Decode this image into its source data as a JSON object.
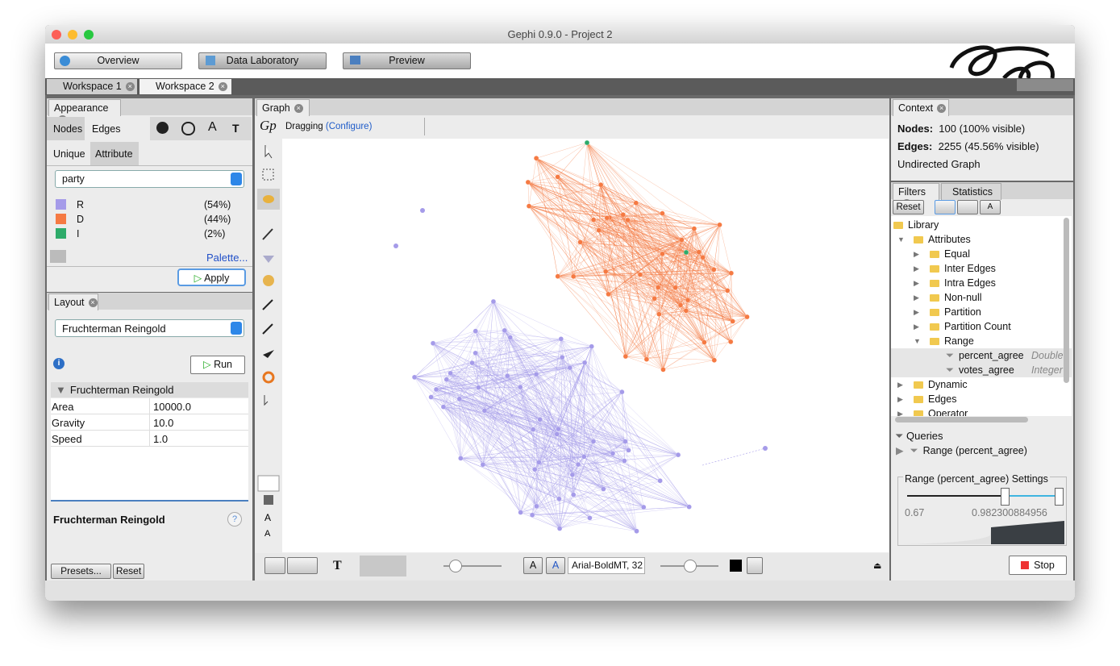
{
  "window": {
    "title": "Gephi 0.9.0 - Project 2"
  },
  "toolbar": {
    "tabs": [
      "Overview",
      "Data Laboratory",
      "Preview"
    ]
  },
  "workspaces": [
    "Workspace 1",
    "Workspace 2"
  ],
  "appearance": {
    "title": "Appearance",
    "tabs": [
      "Nodes",
      "Edges"
    ],
    "modes": [
      "Unique",
      "Attribute"
    ],
    "attribute": "party",
    "partitions": [
      {
        "label": "R",
        "share": "(54%)",
        "color": "#a59be9"
      },
      {
        "label": "D",
        "share": "(44%)",
        "color": "#f57a43"
      },
      {
        "label": "I",
        "share": "(2%)",
        "color": "#2eab6a"
      }
    ],
    "palette": "Palette...",
    "apply": "Apply"
  },
  "layout": {
    "title": "Layout",
    "algorithm": "Fruchterman Reingold",
    "run": "Run",
    "section": "Fruchterman Reingold",
    "properties": [
      {
        "name": "Area",
        "value": "10000.0"
      },
      {
        "name": "Gravity",
        "value": "10.0"
      },
      {
        "name": "Speed",
        "value": "1.0"
      }
    ],
    "description": "Fruchterman Reingold",
    "presets": "Presets...",
    "reset": "Reset"
  },
  "graph": {
    "title": "Graph",
    "mode": "Dragging",
    "configure": "(Configure)",
    "font": "Arial-BoldMT, 32"
  },
  "context": {
    "title": "Context",
    "nodes_label": "Nodes:",
    "nodes": "100 (100% visible)",
    "edges_label": "Edges:",
    "edges": "2255 (45.56% visible)",
    "graph_type": "Undirected Graph"
  },
  "filters": {
    "tabs": [
      "Filters",
      "Statistics"
    ],
    "reset": "Reset",
    "library": {
      "label": "Library",
      "items": [
        {
          "label": "Attributes",
          "children": [
            {
              "label": "Equal"
            },
            {
              "label": "Inter Edges"
            },
            {
              "label": "Intra Edges"
            },
            {
              "label": "Non-null"
            },
            {
              "label": "Partition"
            },
            {
              "label": "Partition Count"
            },
            {
              "label": "Range",
              "children": [
                {
                  "label": "percent_agree",
                  "type": "Double"
                },
                {
                  "label": "votes_agree",
                  "type": "Integer"
                }
              ]
            }
          ]
        },
        {
          "label": "Dynamic"
        },
        {
          "label": "Edges"
        },
        {
          "label": "Operator"
        }
      ]
    },
    "queries": "Queries",
    "query": "Range (percent_agree)",
    "settings": "Range (percent_agree) Settings",
    "min": "0.67",
    "max": "0.982300884956",
    "stop": "Stop"
  }
}
